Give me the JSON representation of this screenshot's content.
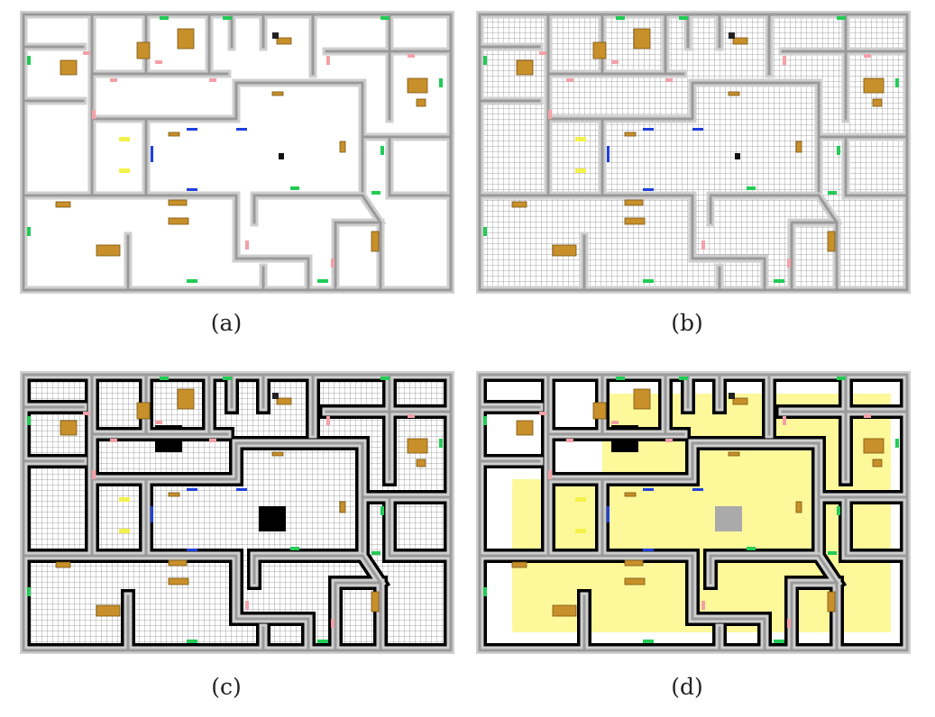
{
  "figure": {
    "panels": [
      {
        "caption": "(a)",
        "variant": "plain"
      },
      {
        "caption": "(b)",
        "variant": "grid"
      },
      {
        "caption": "(c)",
        "variant": "grid-obstacles"
      },
      {
        "caption": "(d)",
        "variant": "yellow-free"
      }
    ]
  },
  "colors": {
    "wall_top": "#9a9a9a",
    "wall_side": "#cfcfcf",
    "floor": "#ffffff",
    "grid_line": "#555555",
    "obstacle": "#000000",
    "free_space": "#fdf89a",
    "furniture": "#c8902a",
    "door_green": "#22cc55",
    "door_pink": "#f4a0a8",
    "door_blue": "#2040e0",
    "light_yellow": "#f2f24a"
  },
  "icons": {
    "furniture": "furniture-icon",
    "door": "door-marker-icon",
    "robot": "robot-icon"
  }
}
